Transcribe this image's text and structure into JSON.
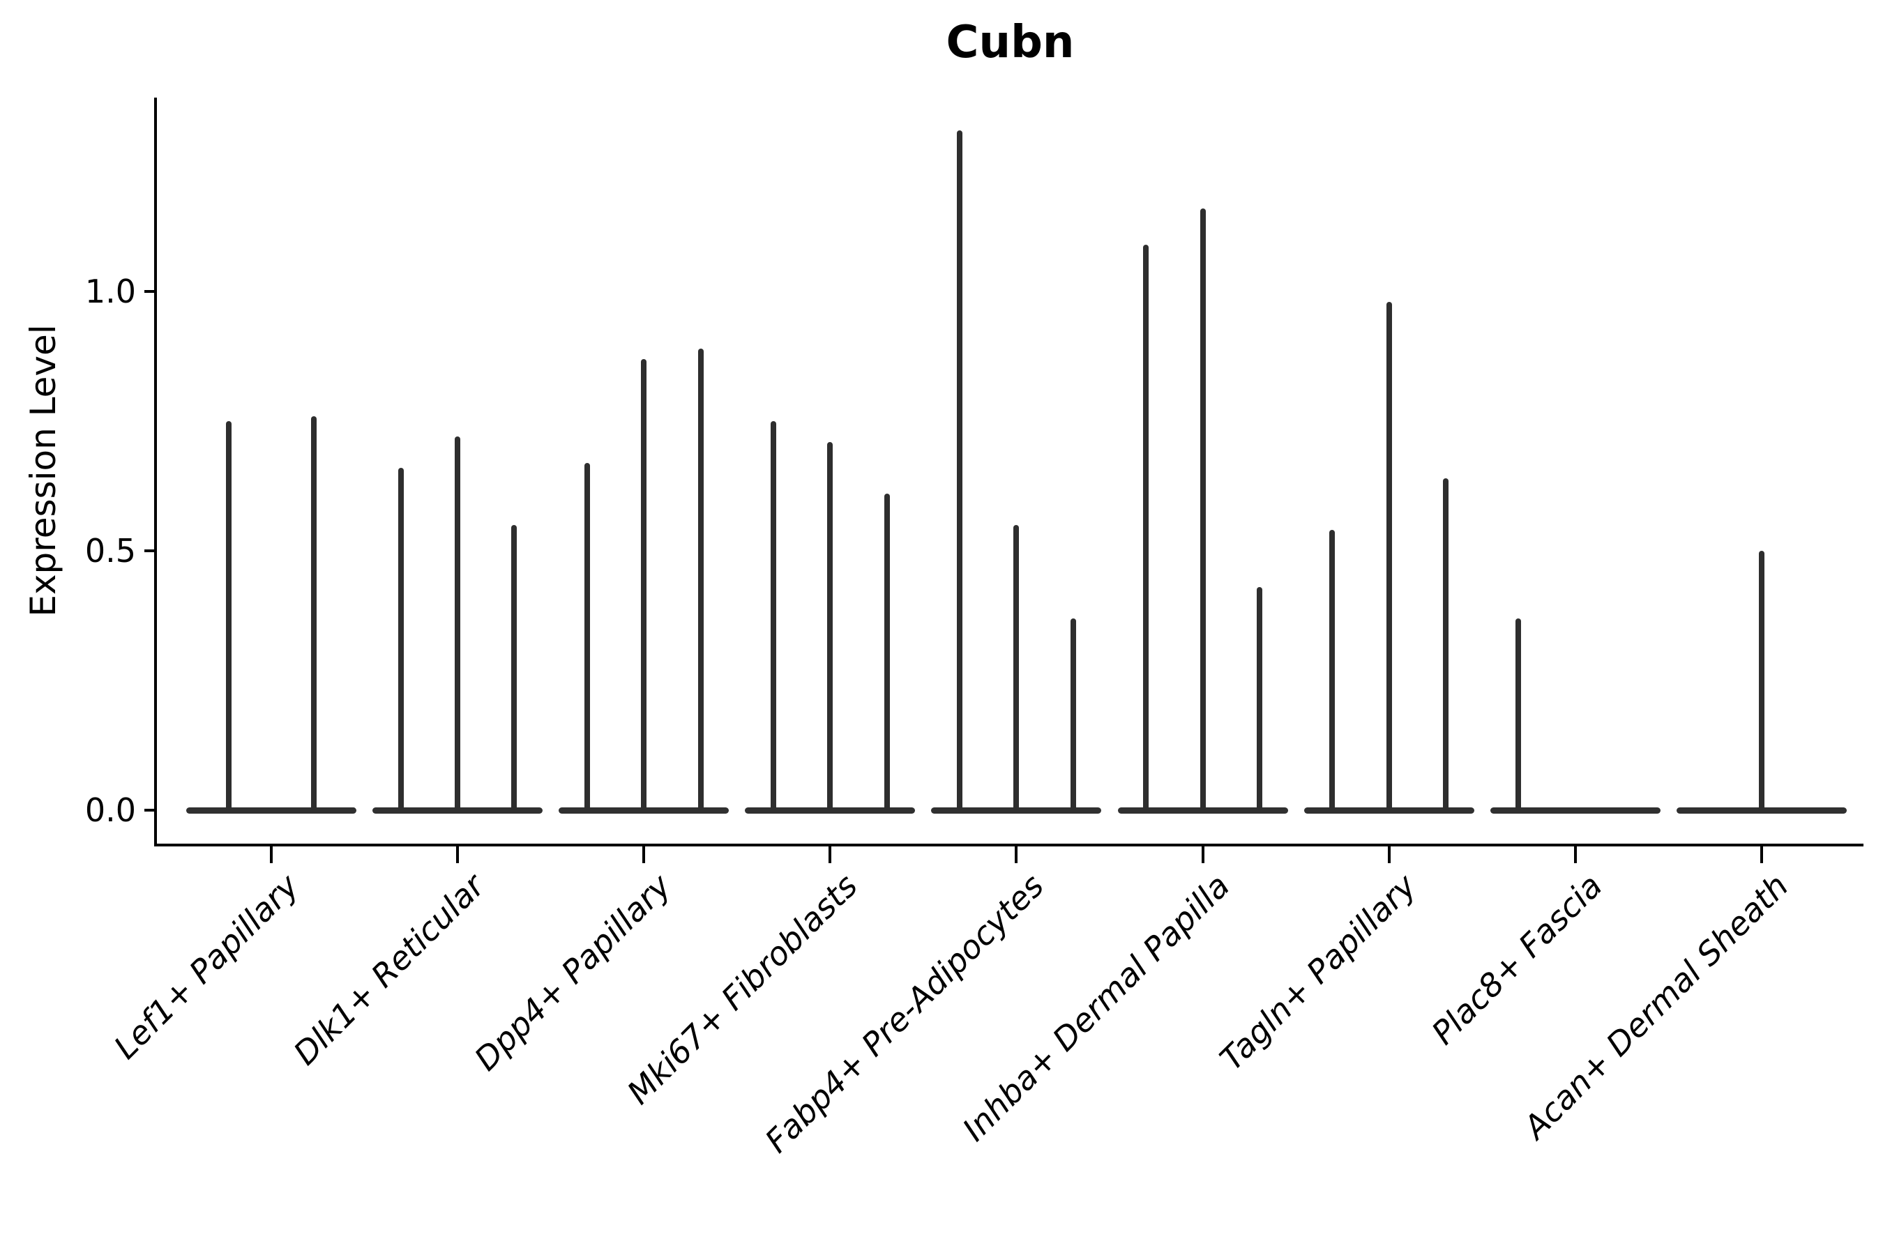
{
  "chart_data": {
    "type": "violin",
    "title": "Cubn",
    "xlabel": "",
    "ylabel": "Expression Level",
    "ylim": [
      -0.065,
      1.374
    ],
    "grid": false,
    "legend": null,
    "yticks": [
      {
        "label": "0.0",
        "value": 0.0
      },
      {
        "label": "0.5",
        "value": 0.5
      },
      {
        "label": "1.0",
        "value": 1.0
      }
    ],
    "categories": [
      {
        "label": "Lef1+ Papillary",
        "violin_peaks": [
          0.75,
          0.76
        ]
      },
      {
        "label": "Dlk1+ Reticular",
        "violin_peaks": [
          0.66,
          0.72,
          0.55
        ]
      },
      {
        "label": "Dpp4+ Papillary",
        "violin_peaks": [
          0.67,
          0.87,
          0.89
        ]
      },
      {
        "label": "Mki67+ Fibroblasts",
        "violin_peaks": [
          0.75,
          0.71,
          0.61
        ]
      },
      {
        "label": "Fabp4+ Pre-Adipocytes",
        "violin_peaks": [
          1.31,
          0.55,
          0.37
        ]
      },
      {
        "label": "Inhba+ Dermal Papilla",
        "violin_peaks": [
          1.09,
          1.16,
          0.43
        ]
      },
      {
        "label": "Tagln+ Papillary",
        "violin_peaks": [
          0.54,
          0.98,
          0.64
        ]
      },
      {
        "label": "Plac8+ Fascia",
        "violin_peaks": [
          0.37,
          0,
          0
        ]
      },
      {
        "label": "Acan+ Dermal Sheath",
        "violin_peaks": [
          0,
          0.5,
          0
        ]
      }
    ],
    "colors": {
      "spike": "#2e2e2e",
      "baseline": "#303030",
      "axis": "#000000",
      "text": "#000000",
      "background": "#ffffff"
    }
  }
}
